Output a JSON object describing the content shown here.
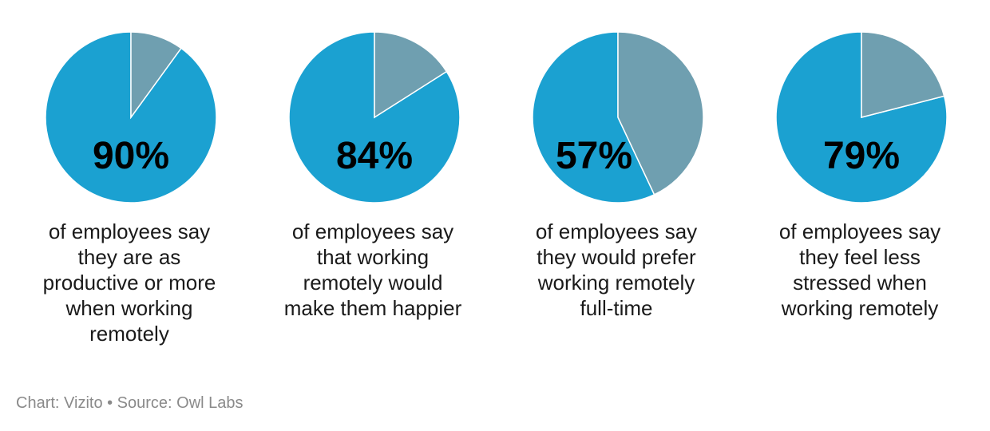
{
  "chart_data": {
    "type": "pie",
    "colors": {
      "primary": "#1ba1d1",
      "remainder": "#6f9fb0"
    },
    "panels": [
      {
        "label": "90%",
        "value": 90,
        "caption": "of employees say\nthey are as\nproductive or more\nwhen working\nremotely"
      },
      {
        "label": "84%",
        "value": 84,
        "caption": "of employees say\nthat working\nremotely would\nmake them happier"
      },
      {
        "label": "57%",
        "value": 57,
        "caption": "of employees say\nthey would prefer\nworking remotely\nfull-time"
      },
      {
        "label": "79%",
        "value": 79,
        "caption": "of employees say\nthey feel less\nstressed when\nworking remotely"
      }
    ]
  },
  "footer": "Chart: Vizito • Source: Owl Labs"
}
